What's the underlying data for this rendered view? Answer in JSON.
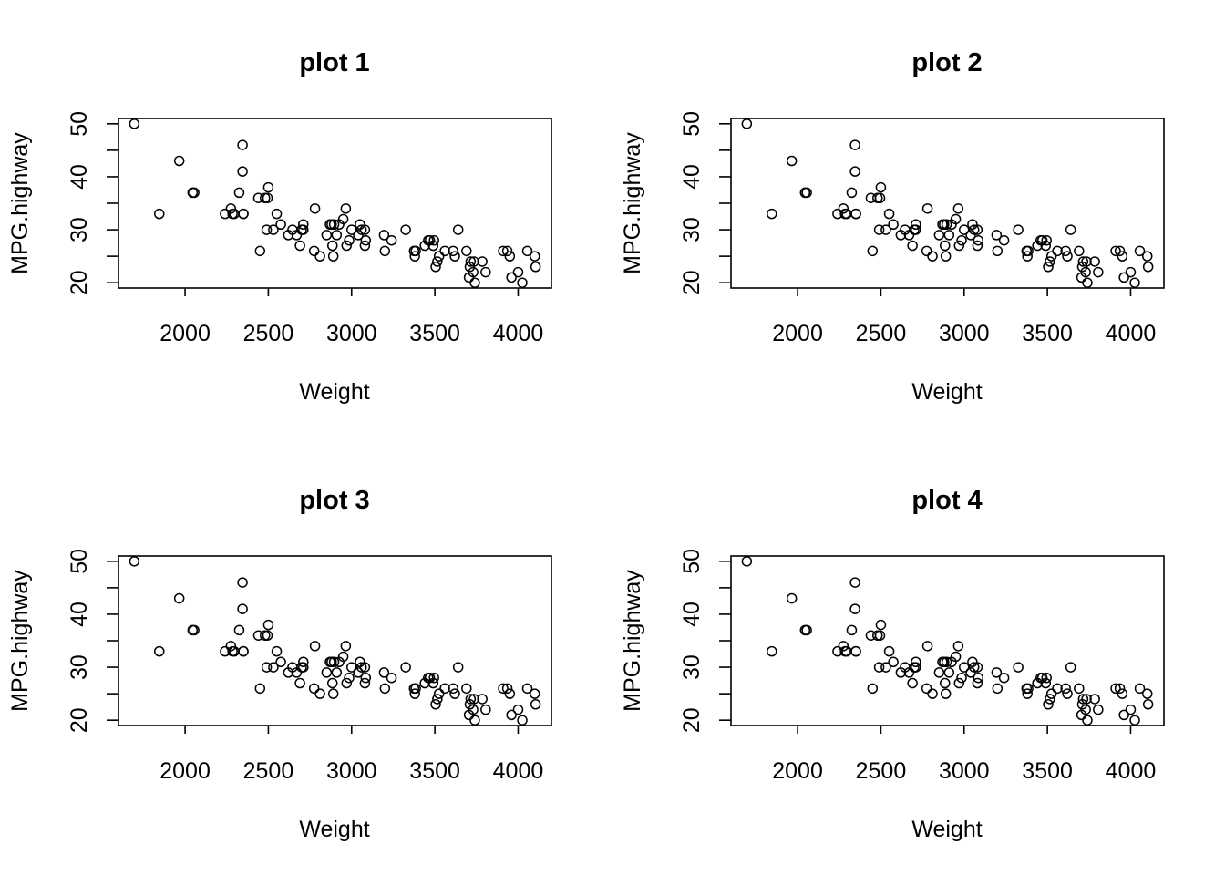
{
  "chart_data": [
    {
      "type": "scatter",
      "title": "plot 1",
      "xlabel": "Weight",
      "ylabel": "MPG.highway",
      "xlim": [
        1600,
        4200
      ],
      "ylim": [
        19,
        51
      ],
      "xticks": [
        "2000",
        "2500",
        "3000",
        "3500",
        "4000"
      ],
      "yticks": [
        "20",
        "30",
        "40",
        "50"
      ],
      "grid": false,
      "x": [
        1695,
        1845,
        1965,
        2045,
        2055,
        2240,
        2275,
        2285,
        2295,
        2325,
        2345,
        2345,
        2350,
        2350,
        2440,
        2450,
        2480,
        2490,
        2495,
        2500,
        2530,
        2550,
        2575,
        2620,
        2645,
        2670,
        2690,
        2700,
        2710,
        2710,
        2775,
        2780,
        2810,
        2850,
        2870,
        2880,
        2885,
        2890,
        2895,
        2910,
        2925,
        2950,
        2965,
        2970,
        2985,
        3000,
        3040,
        3050,
        3060,
        3080,
        3080,
        3085,
        3195,
        3200,
        3240,
        3325,
        3375,
        3380,
        3385,
        3440,
        3460,
        3470,
        3490,
        3495,
        3505,
        3515,
        3525,
        3560,
        3610,
        3620,
        3640,
        3690,
        3705,
        3710,
        3715,
        3730,
        3735,
        3740,
        3785,
        3805,
        3910,
        3935,
        3950,
        3960,
        4000,
        4025,
        4055,
        4100,
        4105
      ],
      "y": [
        50,
        33,
        43,
        37,
        37,
        33,
        34,
        33,
        33,
        37,
        41,
        46,
        33,
        33,
        36,
        26,
        36,
        30,
        36,
        38,
        30,
        33,
        31,
        29,
        30,
        29,
        27,
        30,
        31,
        30,
        26,
        34,
        25,
        29,
        31,
        31,
        27,
        25,
        31,
        29,
        31,
        32,
        34,
        27,
        28,
        30,
        29,
        31,
        30,
        27,
        30,
        28,
        29,
        26,
        28,
        30,
        26,
        25,
        26,
        27,
        28,
        28,
        27,
        28,
        23,
        24,
        25,
        26,
        26,
        25,
        30,
        26,
        21,
        23,
        24,
        22,
        24,
        20,
        24,
        22,
        26,
        26,
        25,
        21,
        22,
        20,
        26,
        25,
        23
      ]
    },
    {
      "type": "scatter",
      "title": "plot 2",
      "xlabel": "Weight",
      "ylabel": "MPG.highway",
      "xlim": [
        1600,
        4200
      ],
      "ylim": [
        19,
        51
      ],
      "xticks": [
        "2000",
        "2500",
        "3000",
        "3500",
        "4000"
      ],
      "yticks": [
        "20",
        "30",
        "40",
        "50"
      ],
      "grid": false,
      "x": [
        1695,
        1845,
        1965,
        2045,
        2055,
        2240,
        2275,
        2285,
        2295,
        2325,
        2345,
        2345,
        2350,
        2350,
        2440,
        2450,
        2480,
        2490,
        2495,
        2500,
        2530,
        2550,
        2575,
        2620,
        2645,
        2670,
        2690,
        2700,
        2710,
        2710,
        2775,
        2780,
        2810,
        2850,
        2870,
        2880,
        2885,
        2890,
        2895,
        2910,
        2925,
        2950,
        2965,
        2970,
        2985,
        3000,
        3040,
        3050,
        3060,
        3080,
        3080,
        3085,
        3195,
        3200,
        3240,
        3325,
        3375,
        3380,
        3385,
        3440,
        3460,
        3470,
        3490,
        3495,
        3505,
        3515,
        3525,
        3560,
        3610,
        3620,
        3640,
        3690,
        3705,
        3710,
        3715,
        3730,
        3735,
        3740,
        3785,
        3805,
        3910,
        3935,
        3950,
        3960,
        4000,
        4025,
        4055,
        4100,
        4105
      ],
      "y": [
        50,
        33,
        43,
        37,
        37,
        33,
        34,
        33,
        33,
        37,
        41,
        46,
        33,
        33,
        36,
        26,
        36,
        30,
        36,
        38,
        30,
        33,
        31,
        29,
        30,
        29,
        27,
        30,
        31,
        30,
        26,
        34,
        25,
        29,
        31,
        31,
        27,
        25,
        31,
        29,
        31,
        32,
        34,
        27,
        28,
        30,
        29,
        31,
        30,
        27,
        30,
        28,
        29,
        26,
        28,
        30,
        26,
        25,
        26,
        27,
        28,
        28,
        27,
        28,
        23,
        24,
        25,
        26,
        26,
        25,
        30,
        26,
        21,
        23,
        24,
        22,
        24,
        20,
        24,
        22,
        26,
        26,
        25,
        21,
        22,
        20,
        26,
        25,
        23
      ]
    },
    {
      "type": "scatter",
      "title": "plot 3",
      "xlabel": "Weight",
      "ylabel": "MPG.highway",
      "xlim": [
        1600,
        4200
      ],
      "ylim": [
        19,
        51
      ],
      "xticks": [
        "2000",
        "2500",
        "3000",
        "3500",
        "4000"
      ],
      "yticks": [
        "20",
        "30",
        "40",
        "50"
      ],
      "grid": false,
      "x": [
        1695,
        1845,
        1965,
        2045,
        2055,
        2240,
        2275,
        2285,
        2295,
        2325,
        2345,
        2345,
        2350,
        2350,
        2440,
        2450,
        2480,
        2490,
        2495,
        2500,
        2530,
        2550,
        2575,
        2620,
        2645,
        2670,
        2690,
        2700,
        2710,
        2710,
        2775,
        2780,
        2810,
        2850,
        2870,
        2880,
        2885,
        2890,
        2895,
        2910,
        2925,
        2950,
        2965,
        2970,
        2985,
        3000,
        3040,
        3050,
        3060,
        3080,
        3080,
        3085,
        3195,
        3200,
        3240,
        3325,
        3375,
        3380,
        3385,
        3440,
        3460,
        3470,
        3490,
        3495,
        3505,
        3515,
        3525,
        3560,
        3610,
        3620,
        3640,
        3690,
        3705,
        3710,
        3715,
        3730,
        3735,
        3740,
        3785,
        3805,
        3910,
        3935,
        3950,
        3960,
        4000,
        4025,
        4055,
        4100,
        4105
      ],
      "y": [
        50,
        33,
        43,
        37,
        37,
        33,
        34,
        33,
        33,
        37,
        41,
        46,
        33,
        33,
        36,
        26,
        36,
        30,
        36,
        38,
        30,
        33,
        31,
        29,
        30,
        29,
        27,
        30,
        31,
        30,
        26,
        34,
        25,
        29,
        31,
        31,
        27,
        25,
        31,
        29,
        31,
        32,
        34,
        27,
        28,
        30,
        29,
        31,
        30,
        27,
        30,
        28,
        29,
        26,
        28,
        30,
        26,
        25,
        26,
        27,
        28,
        28,
        27,
        28,
        23,
        24,
        25,
        26,
        26,
        25,
        30,
        26,
        21,
        23,
        24,
        22,
        24,
        20,
        24,
        22,
        26,
        26,
        25,
        21,
        22,
        20,
        26,
        25,
        23
      ]
    },
    {
      "type": "scatter",
      "title": "plot 4",
      "xlabel": "Weight",
      "ylabel": "MPG.highway",
      "xlim": [
        1600,
        4200
      ],
      "ylim": [
        19,
        51
      ],
      "xticks": [
        "2000",
        "2500",
        "3000",
        "3500",
        "4000"
      ],
      "yticks": [
        "20",
        "30",
        "40",
        "50"
      ],
      "grid": false,
      "x": [
        1695,
        1845,
        1965,
        2045,
        2055,
        2240,
        2275,
        2285,
        2295,
        2325,
        2345,
        2345,
        2350,
        2350,
        2440,
        2450,
        2480,
        2490,
        2495,
        2500,
        2530,
        2550,
        2575,
        2620,
        2645,
        2670,
        2690,
        2700,
        2710,
        2710,
        2775,
        2780,
        2810,
        2850,
        2870,
        2880,
        2885,
        2890,
        2895,
        2910,
        2925,
        2950,
        2965,
        2970,
        2985,
        3000,
        3040,
        3050,
        3060,
        3080,
        3080,
        3085,
        3195,
        3200,
        3240,
        3325,
        3375,
        3380,
        3385,
        3440,
        3460,
        3470,
        3490,
        3495,
        3505,
        3515,
        3525,
        3560,
        3610,
        3620,
        3640,
        3690,
        3705,
        3710,
        3715,
        3730,
        3735,
        3740,
        3785,
        3805,
        3910,
        3935,
        3950,
        3960,
        4000,
        4025,
        4055,
        4100,
        4105
      ],
      "y": [
        50,
        33,
        43,
        37,
        37,
        33,
        34,
        33,
        33,
        37,
        41,
        46,
        33,
        33,
        36,
        26,
        36,
        30,
        36,
        38,
        30,
        33,
        31,
        29,
        30,
        29,
        27,
        30,
        31,
        30,
        26,
        34,
        25,
        29,
        31,
        31,
        27,
        25,
        31,
        29,
        31,
        32,
        34,
        27,
        28,
        30,
        29,
        31,
        30,
        27,
        30,
        28,
        29,
        26,
        28,
        30,
        26,
        25,
        26,
        27,
        28,
        28,
        27,
        28,
        23,
        24,
        25,
        26,
        26,
        25,
        30,
        26,
        21,
        23,
        24,
        22,
        24,
        20,
        24,
        22,
        26,
        26,
        25,
        21,
        22,
        20,
        26,
        25,
        23
      ]
    }
  ]
}
